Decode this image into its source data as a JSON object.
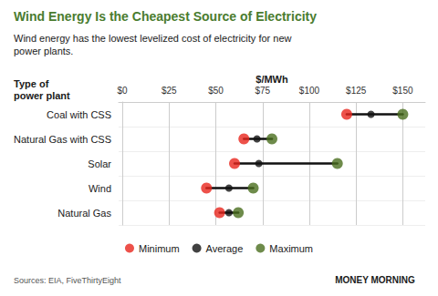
{
  "chart_data": {
    "type": "dumbbell",
    "title": "Wind Energy Is the Cheapest Source of Electricity",
    "subtitle": "Wind energy has the lowest levelized cost of electricity for new\npower plants.",
    "ylabel": "Type of\npower plant",
    "xlabel": "$/MWh",
    "annotations": [
      "Sources: EIA, FiveThirtyEight",
      "MONEY MORNING"
    ],
    "categories": [
      "Coal with CSS",
      "Natural Gas with CSS",
      "Solar",
      "Wind",
      "Natural Gas"
    ],
    "series": [
      {
        "name": "Minimum",
        "color": "#e8251d",
        "values": [
          120,
          65,
          60,
          45,
          52
        ]
      },
      {
        "name": "Average",
        "color": "#111111",
        "values": [
          133,
          72,
          73,
          57,
          57
        ]
      },
      {
        "name": "Maximum",
        "color": "#4a6e1e",
        "values": [
          150,
          80,
          115,
          70,
          62
        ]
      }
    ],
    "xlim": [
      -2,
      162
    ],
    "xticks": [
      {
        "value": 0,
        "label": "$0"
      },
      {
        "value": 25,
        "label": "$25"
      },
      {
        "value": 50,
        "label": "$50"
      },
      {
        "value": 75,
        "label": "$75"
      },
      {
        "value": 100,
        "label": "$100"
      },
      {
        "value": 125,
        "label": "$125"
      },
      {
        "value": 150,
        "label": "$150"
      }
    ],
    "orientation": "horizontal",
    "grid": true,
    "legend": "bottom"
  }
}
